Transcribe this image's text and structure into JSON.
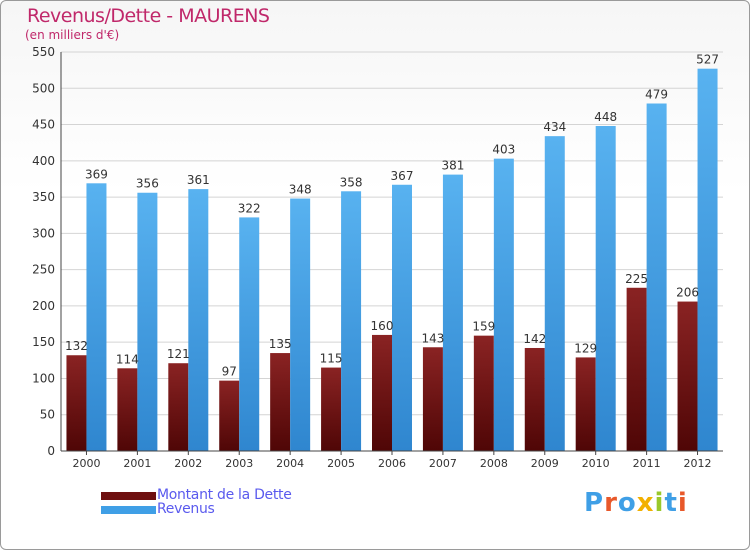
{
  "title": "Revenus/Dette - MAURENS",
  "subtitle": "(en milliers d'€)",
  "colors": {
    "title": "#c0286a",
    "dette": "#6e0f0f",
    "revenus": "#3f9fe6",
    "legend_text": "#5a5aee",
    "grid": "#d4d4d4"
  },
  "legend": [
    {
      "label": "Montant de la Dette",
      "color": "#6e0f0f"
    },
    {
      "label": "Revenus",
      "color": "#3f9fe6"
    }
  ],
  "brand": {
    "text": "Proxiti",
    "letter_colors": [
      "#3f9fe6",
      "#e8582a",
      "#3f9fe6",
      "#f2b000",
      "#9ac82a",
      "#3f9fe6",
      "#e8582a"
    ]
  },
  "chart_data": {
    "type": "bar",
    "title": "Revenus/Dette - MAURENS",
    "ylabel": "(en milliers d'€)",
    "xlabel": "",
    "categories": [
      "2000",
      "2001",
      "2002",
      "2003",
      "2004",
      "2005",
      "2006",
      "2007",
      "2008",
      "2009",
      "2010",
      "2011",
      "2012"
    ],
    "series": [
      {
        "name": "Montant de la Dette",
        "values": [
          132,
          114,
          121,
          97,
          135,
          115,
          160,
          143,
          159,
          142,
          129,
          225,
          206
        ]
      },
      {
        "name": "Revenus",
        "values": [
          369,
          356,
          361,
          322,
          348,
          358,
          367,
          381,
          403,
          434,
          448,
          479,
          527
        ]
      }
    ],
    "ylim": [
      0,
      550
    ],
    "yticks": [
      0,
      50,
      100,
      150,
      200,
      250,
      300,
      350,
      400,
      450,
      500,
      550
    ],
    "grid": true,
    "legend_position": "bottom-left"
  }
}
